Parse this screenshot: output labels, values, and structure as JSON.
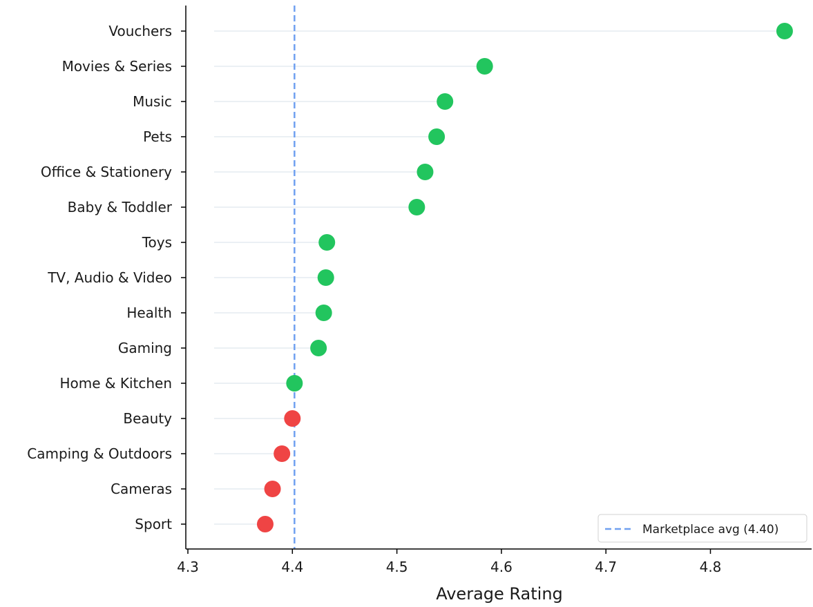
{
  "chart_data": {
    "type": "scatter",
    "subtype": "lollipop",
    "orientation": "horizontal",
    "xlabel": "Average Rating",
    "ylabel": "",
    "title": "",
    "xlim": [
      4.3,
      4.9
    ],
    "xticks": [
      4.3,
      4.4,
      4.5,
      4.6,
      4.7,
      4.8
    ],
    "tick_labels": [
      "4.3",
      "4.4",
      "4.5",
      "4.6",
      "4.7",
      "4.8"
    ],
    "categories": [
      "Vouchers",
      "Movies & Series",
      "Music",
      "Pets",
      "Office & Stationery",
      "Baby & Toddler",
      "Toys",
      "TV, Audio & Video",
      "Health",
      "Gaming",
      "Home & Kitchen",
      "Beauty",
      "Camping & Outdoors",
      "Cameras",
      "Sport"
    ],
    "values": [
      4.871,
      4.584,
      4.546,
      4.538,
      4.527,
      4.519,
      4.433,
      4.432,
      4.43,
      4.425,
      4.402,
      4.4,
      4.39,
      4.381,
      4.374
    ],
    "reference_line": {
      "value": 4.402,
      "label": "Marketplace avg (4.40)",
      "style": "dashed"
    },
    "legend_position": "bottom-right",
    "grid": false,
    "colors": {
      "above_average": "#22c55e",
      "below_average": "#ef4444",
      "reference_line": "#6fa0f0",
      "stem": "#dfe6ee"
    }
  }
}
